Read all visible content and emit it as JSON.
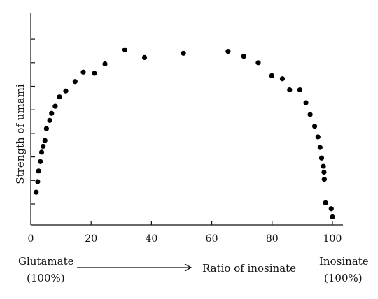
{
  "chart_data": {
    "type": "scatter",
    "title": "",
    "xlabel": "Ratio of inosinate",
    "ylabel": "Strength of umami",
    "xlim": [
      0,
      100
    ],
    "ylim": [
      0,
      9
    ],
    "x_ticks": [
      "0",
      "20",
      "40",
      "60",
      "80",
      "100"
    ],
    "y_ticks_count": 8,
    "y_tick_labels_shown": false,
    "grid": false,
    "legend": "none",
    "marker_color": "#000000",
    "points": [
      {
        "x": 1.8,
        "y": 1.5
      },
      {
        "x": 2.3,
        "y": 1.95
      },
      {
        "x": 2.6,
        "y": 2.4
      },
      {
        "x": 3.2,
        "y": 2.8
      },
      {
        "x": 3.6,
        "y": 3.2
      },
      {
        "x": 4.1,
        "y": 3.45
      },
      {
        "x": 4.7,
        "y": 3.7
      },
      {
        "x": 5.2,
        "y": 4.2
      },
      {
        "x": 6.3,
        "y": 4.55
      },
      {
        "x": 6.9,
        "y": 4.85
      },
      {
        "x": 8.1,
        "y": 5.15
      },
      {
        "x": 9.5,
        "y": 5.55
      },
      {
        "x": 11.6,
        "y": 5.8
      },
      {
        "x": 14.7,
        "y": 6.2
      },
      {
        "x": 17.4,
        "y": 6.6
      },
      {
        "x": 21.1,
        "y": 6.55
      },
      {
        "x": 24.6,
        "y": 6.95
      },
      {
        "x": 31.2,
        "y": 7.55
      },
      {
        "x": 37.7,
        "y": 7.22
      },
      {
        "x": 50.6,
        "y": 7.4
      },
      {
        "x": 65.4,
        "y": 7.48
      },
      {
        "x": 70.6,
        "y": 7.27
      },
      {
        "x": 75.4,
        "y": 7.0
      },
      {
        "x": 79.9,
        "y": 6.45
      },
      {
        "x": 83.4,
        "y": 6.32
      },
      {
        "x": 85.8,
        "y": 5.85
      },
      {
        "x": 89.2,
        "y": 5.85
      },
      {
        "x": 91.2,
        "y": 5.3
      },
      {
        "x": 92.6,
        "y": 4.8
      },
      {
        "x": 94.1,
        "y": 4.3
      },
      {
        "x": 95.2,
        "y": 3.85
      },
      {
        "x": 95.9,
        "y": 3.4
      },
      {
        "x": 96.4,
        "y": 2.95
      },
      {
        "x": 97.0,
        "y": 2.6
      },
      {
        "x": 97.2,
        "y": 2.35
      },
      {
        "x": 97.3,
        "y": 2.05
      },
      {
        "x": 97.7,
        "y": 1.05
      },
      {
        "x": 99.6,
        "y": 0.8
      },
      {
        "x": 100.0,
        "y": 0.45
      }
    ]
  },
  "annotations": {
    "left_label_line1": "Glutamate",
    "left_label_line2": "(100%)",
    "center_label": "Ratio of inosinate",
    "right_label_line1": "Inosinate",
    "right_label_line2": "(100%)"
  }
}
